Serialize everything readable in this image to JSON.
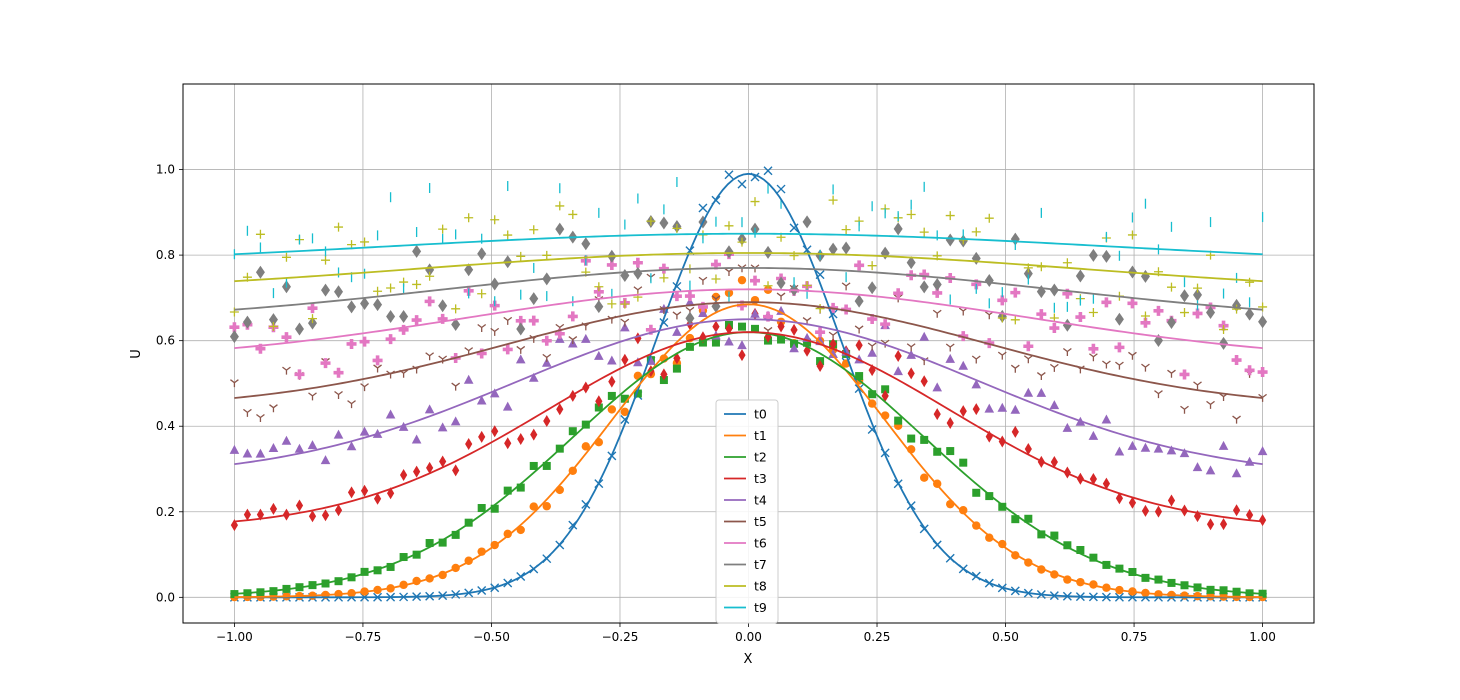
{
  "chart_data": {
    "type": "line",
    "title": "",
    "xlabel": "X",
    "ylabel": "U",
    "xlim": [
      -1.1,
      1.1
    ],
    "ylim": [
      -0.06,
      1.2
    ],
    "xticks": [
      -1.0,
      -0.75,
      -0.5,
      -0.25,
      0.0,
      0.25,
      0.5,
      0.75,
      1.0
    ],
    "xtick_labels": [
      "−1.00",
      "−0.75",
      "−0.50",
      "−0.25",
      "0.00",
      "0.25",
      "0.50",
      "0.75",
      "1.00"
    ],
    "yticks": [
      0.0,
      0.2,
      0.4,
      0.6,
      0.8,
      1.0
    ],
    "ytick_labels": [
      "0.0",
      "0.2",
      "0.4",
      "0.6",
      "0.8",
      "1.0"
    ],
    "grid": true,
    "legend_position": "lower-center",
    "sample_points": 80,
    "series": [
      {
        "name": "t0",
        "color": "#1f77b4",
        "marker": "x",
        "peak": 0.99,
        "sigma": 0.18,
        "base": 0.0,
        "noise": 0.04
      },
      {
        "name": "t1",
        "color": "#ff7f0e",
        "marker": "circle",
        "peak": 0.685,
        "sigma": 0.265,
        "base": 0.0,
        "noise": 0.06
      },
      {
        "name": "t2",
        "color": "#2ca02c",
        "marker": "square",
        "peak": 0.62,
        "sigma": 0.34,
        "base": 0.0,
        "noise": 0.06
      },
      {
        "name": "t3",
        "color": "#d62728",
        "marker": "thin-diamond",
        "peak": 0.46,
        "sigma": 0.39,
        "base": 0.16,
        "noise": 0.08
      },
      {
        "name": "t4",
        "color": "#9467bd",
        "marker": "triangle-up",
        "peak": 0.37,
        "sigma": 0.45,
        "base": 0.28,
        "noise": 0.08
      },
      {
        "name": "t5",
        "color": "#8c564b",
        "marker": "tri-down",
        "peak": 0.25,
        "sigma": 0.47,
        "base": 0.44,
        "noise": 0.09
      },
      {
        "name": "t6",
        "color": "#e377c2",
        "marker": "plus-filled",
        "peak": 0.17,
        "sigma": 0.55,
        "base": 0.55,
        "noise": 0.1
      },
      {
        "name": "t7",
        "color": "#7f7f7f",
        "marker": "diamond",
        "peak": 0.13,
        "sigma": 0.6,
        "base": 0.64,
        "noise": 0.11
      },
      {
        "name": "t8",
        "color": "#bcbd22",
        "marker": "plus",
        "peak": 0.095,
        "sigma": 0.65,
        "base": 0.71,
        "noise": 0.12
      },
      {
        "name": "t9",
        "color": "#17becf",
        "marker": "vline",
        "peak": 0.075,
        "sigma": 0.7,
        "base": 0.775,
        "noise": 0.13
      }
    ]
  }
}
